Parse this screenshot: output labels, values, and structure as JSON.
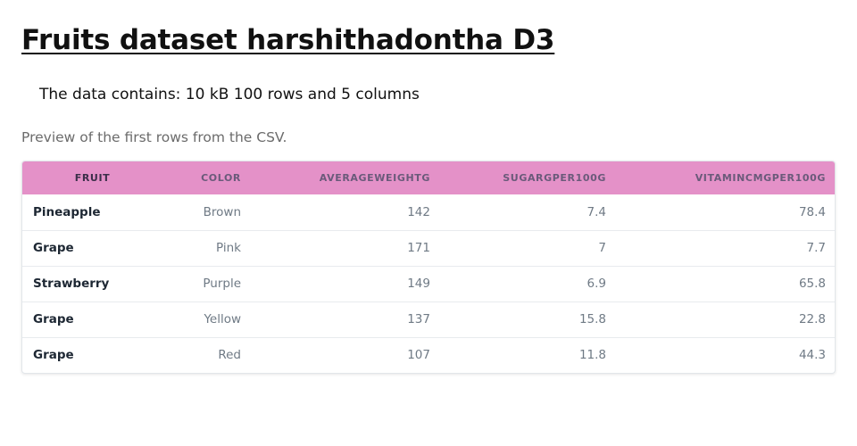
{
  "page": {
    "title": "Fruits dataset harshithadontha D3",
    "summary": "The data contains: 10 kB 100 rows and 5 columns",
    "preview_caption": "Preview of the first rows from the CSV."
  },
  "table": {
    "header_color": "#e491c8",
    "columns": [
      "FRUIT",
      "COLOR",
      "AVERAGEWEIGHTG",
      "SUGARGPER100G",
      "VITAMINCMGPER100G"
    ],
    "rows": [
      [
        "Pineapple",
        "Brown",
        "142",
        "7.4",
        "78.4"
      ],
      [
        "Grape",
        "Pink",
        "171",
        "7",
        "7.7"
      ],
      [
        "Strawberry",
        "Purple",
        "149",
        "6.9",
        "65.8"
      ],
      [
        "Grape",
        "Yellow",
        "137",
        "15.8",
        "22.8"
      ],
      [
        "Grape",
        "Red",
        "107",
        "11.8",
        "44.3"
      ]
    ]
  }
}
